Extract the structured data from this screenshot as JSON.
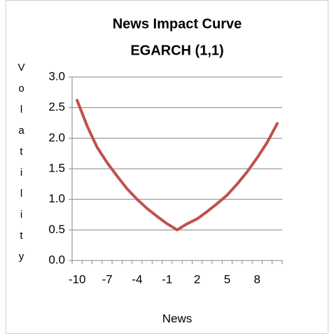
{
  "chart_data": {
    "type": "line",
    "title": "News Impact Curve",
    "subtitle": "EGARCH (1,1)",
    "y_label": "Volatility",
    "x_label": "News",
    "categories": [
      -10,
      null,
      null,
      -7,
      null,
      null,
      -4,
      null,
      null,
      -1,
      null,
      null,
      2,
      null,
      null,
      5,
      null,
      null,
      8,
      null,
      null
    ],
    "values": [
      2.62,
      2.2,
      1.85,
      1.6,
      1.38,
      1.17,
      1.0,
      0.85,
      0.72,
      0.6,
      0.5,
      0.6,
      0.68,
      0.8,
      0.93,
      1.07,
      1.25,
      1.45,
      1.68,
      1.93,
      2.24
    ],
    "color": "#c0504d",
    "ylim": [
      0,
      3
    ],
    "yticks": [
      {
        "value": 0,
        "label": "0.0"
      },
      0.5,
      {
        "value": 1,
        "label": "1.0"
      },
      1.5,
      {
        "value": 2,
        "label": "2.0"
      },
      2.5,
      {
        "value": 3,
        "label": "3.0"
      }
    ],
    "grid": true
  }
}
